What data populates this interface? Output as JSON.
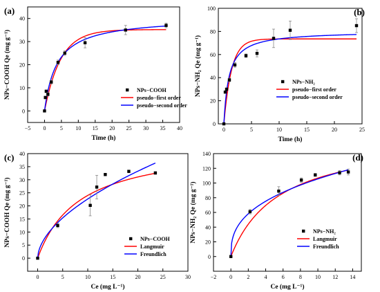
{
  "chart_data": [
    {
      "type": "scatter",
      "panel_label": "(a)",
      "xlabel": "Time (h)",
      "ylabel": "NPs−COOH Qe (mg g⁻¹)",
      "xlim": [
        -5,
        40
      ],
      "ylim": [
        -5,
        45
      ],
      "xticks": [
        -5,
        0,
        5,
        10,
        15,
        20,
        25,
        30,
        35,
        40
      ],
      "yticks": [
        0,
        10,
        20,
        30,
        40
      ],
      "grid": false,
      "legend_position": "bottom-right",
      "series": [
        {
          "name": "NPs−COOH",
          "kind": "points",
          "color": "#000000",
          "x": [
            0,
            0.25,
            0.5,
            1,
            2,
            4,
            6,
            12,
            24,
            36
          ],
          "y": [
            0,
            5.8,
            8.5,
            7.2,
            12.5,
            21,
            25,
            29.5,
            35,
            37
          ],
          "err": [
            0.4,
            0.6,
            0.6,
            0.7,
            0.8,
            1.0,
            1.0,
            2.2,
            2.0,
            1.0
          ]
        },
        {
          "name": "pseudo−first order",
          "kind": "curve",
          "model": "pfo",
          "color": "#ff0000",
          "qe": 35.2,
          "k": 0.21
        },
        {
          "name": "pseudo−second order",
          "kind": "curve",
          "model": "pso",
          "color": "#0000ff",
          "qe": 40.5,
          "k": 0.0067
        }
      ]
    },
    {
      "type": "scatter",
      "panel_label": "(b)",
      "xlabel": "Time (h)",
      "ylabel": "NPs−NH₂ Qe (mg g⁻¹)",
      "xlim": [
        -1,
        25
      ],
      "ylim": [
        0,
        100
      ],
      "xticks": [
        0,
        5,
        10,
        15,
        20,
        25
      ],
      "yticks": [
        0,
        20,
        40,
        60,
        80,
        100
      ],
      "grid": false,
      "legend_position": "right",
      "series": [
        {
          "name": "NPs−NH₂",
          "kind": "points",
          "color": "#000000",
          "x": [
            0,
            0.25,
            0.5,
            1,
            2,
            4,
            6,
            9,
            12,
            24
          ],
          "y": [
            0,
            27.5,
            30,
            38,
            51,
            59,
            61,
            74,
            81,
            85
          ],
          "err": [
            0.5,
            1.0,
            1.0,
            1.5,
            2.0,
            1.5,
            3.0,
            8.0,
            8.0,
            6.0
          ]
        },
        {
          "name": "pseudo−first order",
          "kind": "curve",
          "model": "pfo",
          "color": "#ff0000",
          "qe": 73.5,
          "k": 0.72
        },
        {
          "name": "pseudo−second order",
          "kind": "curve",
          "model": "pso",
          "color": "#0000ff",
          "qe": 80.3,
          "k": 0.0135
        }
      ]
    },
    {
      "type": "scatter",
      "panel_label": "(c)",
      "xlabel": "Ce (mg L⁻¹)",
      "ylabel": "NPs−COOH Qe (mg g⁻¹)",
      "xlim": [
        -2,
        30
      ],
      "ylim": [
        -5,
        40
      ],
      "xticks": [
        0,
        5,
        10,
        15,
        20,
        25,
        30
      ],
      "yticks": [
        0,
        5,
        10,
        15,
        20,
        25,
        30,
        35,
        40
      ],
      "grid": false,
      "legend_position": "bottom-right",
      "series": [
        {
          "name": "NPs−COOH",
          "kind": "points",
          "color": "#000000",
          "x": [
            0,
            4,
            10.5,
            11.8,
            13.5,
            18.2,
            23.5
          ],
          "y": [
            0,
            12.5,
            20.2,
            27.2,
            32,
            33.2,
            32.6
          ],
          "err": [
            0.3,
            0.8,
            4.0,
            4.5,
            0.5,
            0.5,
            0.5
          ]
        },
        {
          "name": "Langmuir",
          "kind": "curve",
          "model": "langmuir",
          "color": "#ff0000",
          "qm": 44,
          "kl": 0.12
        },
        {
          "name": "Freundlich",
          "kind": "curve",
          "model": "freundlich",
          "color": "#0000ff",
          "kf": 6.3,
          "n": 1.8
        }
      ]
    },
    {
      "type": "scatter",
      "panel_label": "(d)",
      "xlabel": "Ce (mg L⁻¹)",
      "ylabel": "NPs−NH₂ Qe (mg g⁻¹)",
      "xlim": [
        -2,
        15
      ],
      "ylim": [
        -20,
        140
      ],
      "xticks": [
        -2,
        0,
        2,
        4,
        6,
        8,
        10,
        12,
        14
      ],
      "yticks": [
        0,
        20,
        40,
        60,
        80,
        100,
        120,
        140
      ],
      "grid": false,
      "legend_position": "right",
      "series": [
        {
          "name": "NPs−NH₂",
          "kind": "points",
          "color": "#000000",
          "x": [
            0,
            2.2,
            5.5,
            8.1,
            9.7,
            12.5,
            13.5
          ],
          "y": [
            0,
            61,
            89,
            104,
            111,
            114,
            115
          ],
          "err": [
            0.5,
            3.0,
            6.0,
            3.0,
            2.0,
            3.0,
            4.0
          ]
        },
        {
          "name": "Langmuir",
          "kind": "curve",
          "model": "langmuir",
          "color": "#ff0000",
          "qm": 166,
          "kl": 0.18
        },
        {
          "name": "Freundlich",
          "kind": "curve",
          "model": "freundlich",
          "color": "#0000ff",
          "kf": 45,
          "n": 2.7
        }
      ]
    }
  ]
}
